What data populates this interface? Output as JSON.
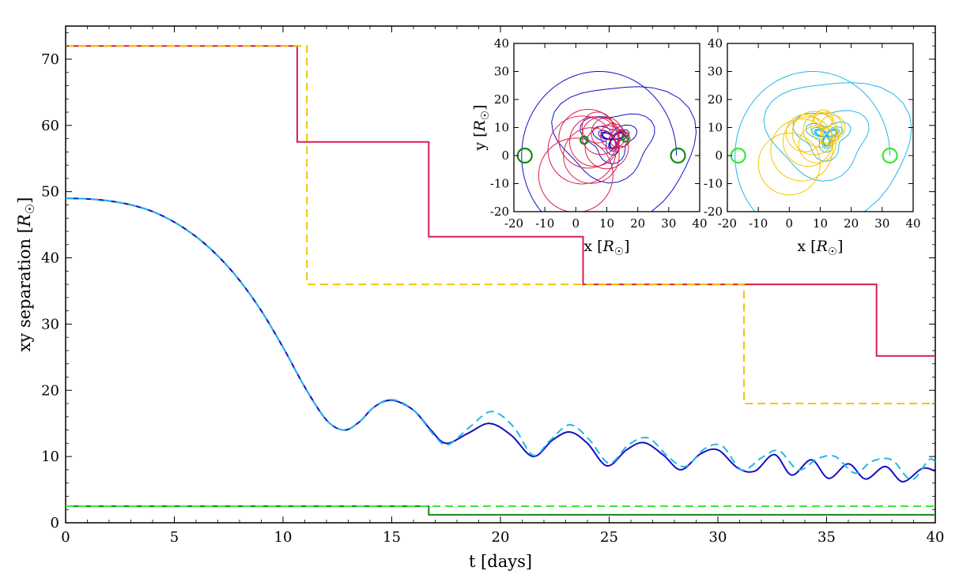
{
  "chart_data": [
    {
      "type": "line",
      "role": "main",
      "title": "",
      "xlabel": "t  [days]",
      "ylabel": "xy  separation  [R☉]",
      "xlim": [
        0,
        40
      ],
      "ylim": [
        0,
        75
      ],
      "x_ticks": [
        0,
        5,
        10,
        15,
        20,
        25,
        30,
        35,
        40
      ],
      "y_ticks": [
        0,
        10,
        20,
        30,
        40,
        50,
        60,
        70
      ],
      "series": [
        {
          "name": "separation-solid",
          "style": "solid",
          "color": "#1010c8",
          "points": [
            [
              0,
              49
            ],
            [
              1,
              48.9
            ],
            [
              2,
              48.6
            ],
            [
              3,
              48.0
            ],
            [
              4,
              47.0
            ],
            [
              5,
              45.4
            ],
            [
              6,
              43.2
            ],
            [
              7,
              40.3
            ],
            [
              8,
              36.6
            ],
            [
              9,
              32.0
            ],
            [
              10,
              26.5
            ],
            [
              11,
              20.5
            ],
            [
              12,
              15.5
            ],
            [
              12.8,
              14.0
            ],
            [
              13.5,
              15.2
            ],
            [
              14.2,
              17.5
            ],
            [
              15,
              18.5
            ],
            [
              16,
              17.0
            ],
            [
              16.8,
              14.0
            ],
            [
              17.5,
              12.0
            ],
            [
              18.5,
              13.5
            ],
            [
              19.5,
              15.0
            ],
            [
              20.5,
              13.2
            ],
            [
              21.5,
              10.0
            ],
            [
              22.4,
              12.5
            ],
            [
              23.2,
              13.7
            ],
            [
              24.0,
              12.0
            ],
            [
              24.9,
              8.6
            ],
            [
              25.8,
              11.0
            ],
            [
              26.6,
              12.1
            ],
            [
              27.5,
              10.2
            ],
            [
              28.3,
              8.0
            ],
            [
              29.2,
              10.4
            ],
            [
              30.0,
              11.0
            ],
            [
              30.9,
              8.3
            ],
            [
              31.7,
              7.8
            ],
            [
              32.6,
              10.3
            ],
            [
              33.4,
              7.2
            ],
            [
              34.3,
              9.5
            ],
            [
              35.1,
              6.7
            ],
            [
              36.0,
              8.9
            ],
            [
              36.8,
              6.6
            ],
            [
              37.7,
              8.5
            ],
            [
              38.5,
              6.2
            ],
            [
              39.4,
              8.2
            ],
            [
              40,
              7.8
            ]
          ]
        },
        {
          "name": "separation-dashed",
          "style": "dashed",
          "color": "#22b8e8",
          "points": [
            [
              0,
              49
            ],
            [
              1,
              48.9
            ],
            [
              2,
              48.6
            ],
            [
              3,
              48.0
            ],
            [
              4,
              47.0
            ],
            [
              5,
              45.4
            ],
            [
              6,
              43.2
            ],
            [
              7,
              40.3
            ],
            [
              8,
              36.6
            ],
            [
              9,
              32.0
            ],
            [
              10,
              26.5
            ],
            [
              11,
              20.5
            ],
            [
              12,
              15.5
            ],
            [
              12.8,
              14.0
            ],
            [
              13.5,
              15.2
            ],
            [
              14.2,
              17.5
            ],
            [
              15,
              18.6
            ],
            [
              16,
              17.0
            ],
            [
              17,
              13.0
            ],
            [
              17.6,
              11.8
            ],
            [
              18.6,
              14.5
            ],
            [
              19.6,
              16.8
            ],
            [
              20.6,
              14.5
            ],
            [
              21.5,
              10.2
            ],
            [
              22.3,
              12.5
            ],
            [
              23.2,
              14.8
            ],
            [
              24.1,
              12.5
            ],
            [
              25.0,
              9.0
            ],
            [
              25.9,
              11.8
            ],
            [
              26.8,
              12.8
            ],
            [
              27.7,
              10.0
            ],
            [
              28.5,
              8.5
            ],
            [
              29.4,
              11.2
            ],
            [
              30.2,
              11.6
            ],
            [
              31.1,
              8.0
            ],
            [
              32.0,
              9.8
            ],
            [
              32.8,
              10.9
            ],
            [
              33.7,
              8.0
            ],
            [
              34.6,
              9.7
            ],
            [
              35.4,
              10.0
            ],
            [
              36.3,
              7.5
            ],
            [
              37.1,
              9.3
            ],
            [
              38.0,
              9.5
            ],
            [
              38.9,
              6.5
            ],
            [
              39.7,
              9.5
            ],
            [
              40,
              9.2
            ]
          ]
        },
        {
          "name": "step-red-solid",
          "style": "solid",
          "color": "#d81e4e",
          "points": [
            [
              0,
              72
            ],
            [
              10.65,
              72
            ],
            [
              10.65,
              57.5
            ],
            [
              16.7,
              57.5
            ],
            [
              16.7,
              43.2
            ],
            [
              23.8,
              43.2
            ],
            [
              23.8,
              36
            ],
            [
              37.3,
              36
            ],
            [
              37.3,
              25.2
            ],
            [
              40,
              25.2
            ]
          ]
        },
        {
          "name": "step-yellow-dashed",
          "style": "dashed",
          "color": "#f5c400",
          "points": [
            [
              0,
              72
            ],
            [
              11.1,
              72
            ],
            [
              11.1,
              36
            ],
            [
              31.2,
              36
            ],
            [
              31.2,
              18
            ],
            [
              40,
              18
            ]
          ]
        },
        {
          "name": "step-green-solid",
          "style": "solid",
          "color": "#128a12",
          "points": [
            [
              0,
              2.5
            ],
            [
              16.7,
              2.5
            ],
            [
              16.7,
              1.2
            ],
            [
              40,
              1.2
            ]
          ]
        },
        {
          "name": "step-green-dashed",
          "style": "dashed",
          "color": "#36e836",
          "points": [
            [
              0,
              2.5
            ],
            [
              40,
              2.5
            ]
          ]
        }
      ]
    },
    {
      "type": "line",
      "role": "inset-left",
      "title": "",
      "xlabel": "x [R☉]",
      "ylabel": "y [R☉]",
      "xlim": [
        -20,
        40
      ],
      "ylim": [
        -20,
        40
      ],
      "x_ticks": [
        -20,
        -10,
        0,
        10,
        20,
        30,
        40
      ],
      "y_ticks": [
        -20,
        -10,
        0,
        10,
        20,
        30,
        40
      ],
      "series": [
        {
          "name": "orbit-blue",
          "color": "#1010c8",
          "spiral": {
            "center": [
              12,
              6
            ],
            "r_start": 20,
            "r_min": 1.5,
            "theta_start": 0,
            "turns": 7.5,
            "decay": 0.42,
            "start_point": [
              32.5,
              0
            ]
          }
        },
        {
          "name": "orbit-red",
          "color": "#d81e4e",
          "circles": [
            [
              0,
              -7,
              12
            ],
            [
              2,
              2,
              11
            ],
            [
              4,
              6,
              9.5
            ],
            [
              6,
              5,
              8
            ],
            [
              8,
              7,
              6
            ],
            [
              10,
              8,
              5
            ],
            [
              12,
              7,
              4
            ],
            [
              14,
              6,
              3
            ],
            [
              15,
              6,
              2.5
            ],
            [
              10,
              3,
              7
            ],
            [
              5,
              0,
              9
            ],
            [
              7,
              10,
              5
            ]
          ]
        },
        {
          "name": "markers-green",
          "color": "#128a12",
          "circles": [
            [
              -16.5,
              0,
              2.3
            ],
            [
              33,
              0,
              2.3
            ],
            [
              2.7,
              5.5,
              1.2
            ],
            [
              16,
              6,
              1
            ]
          ]
        }
      ]
    },
    {
      "type": "line",
      "role": "inset-right",
      "title": "",
      "xlabel": "x [R☉]",
      "ylabel": "",
      "xlim": [
        -20,
        40
      ],
      "ylim": [
        -20,
        40
      ],
      "x_ticks": [
        -20,
        -10,
        0,
        10,
        20,
        30,
        40
      ],
      "y_ticks": [
        -20,
        -10,
        0,
        10,
        20,
        30,
        40
      ],
      "series": [
        {
          "name": "orbit-cyan",
          "color": "#22b8e8",
          "spiral": {
            "center": [
              12,
              7
            ],
            "r_start": 20,
            "r_min": 1.5,
            "theta_start": 0,
            "turns": 7.5,
            "decay": 0.42,
            "start_point": [
              32.5,
              0
            ]
          }
        },
        {
          "name": "orbit-yellow",
          "color": "#f5c400",
          "circles": [
            [
              0,
              -3,
              10
            ],
            [
              4,
              2,
              10
            ],
            [
              6,
              5,
              8
            ],
            [
              8,
              8,
              7
            ],
            [
              10,
              9,
              5.5
            ],
            [
              12,
              10,
              5
            ],
            [
              14,
              10,
              4
            ],
            [
              13,
              7,
              3
            ],
            [
              9,
              4,
              6
            ],
            [
              5,
              8,
              6
            ],
            [
              11,
              13,
              3
            ]
          ]
        },
        {
          "name": "markers-green",
          "color": "#36e836",
          "circles": [
            [
              -16.5,
              0,
              2.3
            ],
            [
              32.5,
              0,
              2.3
            ]
          ]
        }
      ]
    }
  ]
}
